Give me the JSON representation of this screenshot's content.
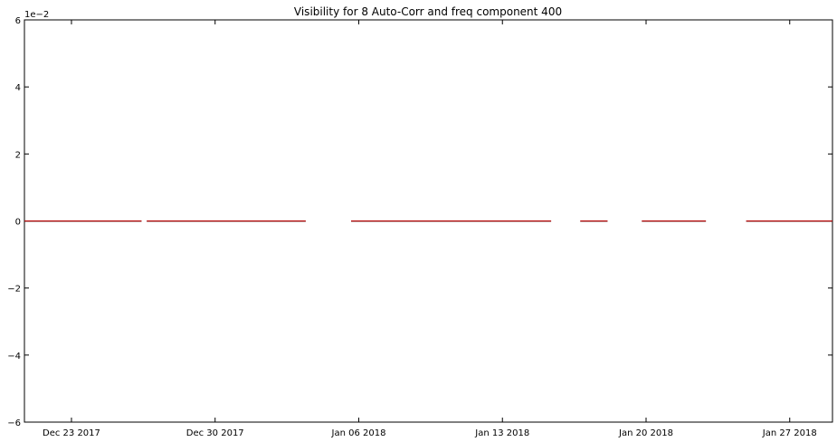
{
  "chart_data": {
    "type": "line",
    "title": "Visibility for 8 Auto-Corr and freq component 400",
    "xlabel": "",
    "ylabel": "",
    "y_scale_label": "1e−2",
    "ylim": [
      -6,
      6
    ],
    "y_ticks": [
      -6,
      -4,
      -2,
      0,
      2,
      4,
      6
    ],
    "y_tick_labels": [
      "−6",
      "−4",
      "−2",
      "0",
      "2",
      "4",
      "6"
    ],
    "xlim": [
      "2017-12-20T17:00",
      "2018-01-29T02:00"
    ],
    "x_ticks": [
      "2017-12-23",
      "2017-12-30",
      "2018-01-06",
      "2018-01-13",
      "2018-01-20",
      "2018-01-27"
    ],
    "x_tick_labels": [
      "Dec 23 2017",
      "Dec 30 2017",
      "Jan 06 2018",
      "Jan 13 2018",
      "Jan 20 2018",
      "Jan 27 2018"
    ],
    "grid": false,
    "series": [
      {
        "color": "#cc0000",
        "segments": [
          {
            "x": [
              "2017-12-20T17:00",
              "2017-12-26T10:00"
            ],
            "y": [
              0,
              0
            ]
          },
          {
            "x": [
              "2017-12-26T16:00",
              "2018-01-03T10:00"
            ],
            "y": [
              0,
              0
            ]
          },
          {
            "x": [
              "2018-01-05T15:00",
              "2018-01-15T09:00"
            ],
            "y": [
              0,
              0
            ]
          },
          {
            "x": [
              "2018-01-16T19:00",
              "2018-01-18T03:00"
            ],
            "y": [
              0,
              0
            ]
          },
          {
            "x": [
              "2018-01-19T19:00",
              "2018-01-22T22:00"
            ],
            "y": [
              0,
              0
            ]
          },
          {
            "x": [
              "2018-01-24T21:00",
              "2018-01-29T02:00"
            ],
            "y": [
              0,
              0
            ]
          }
        ]
      }
    ]
  }
}
